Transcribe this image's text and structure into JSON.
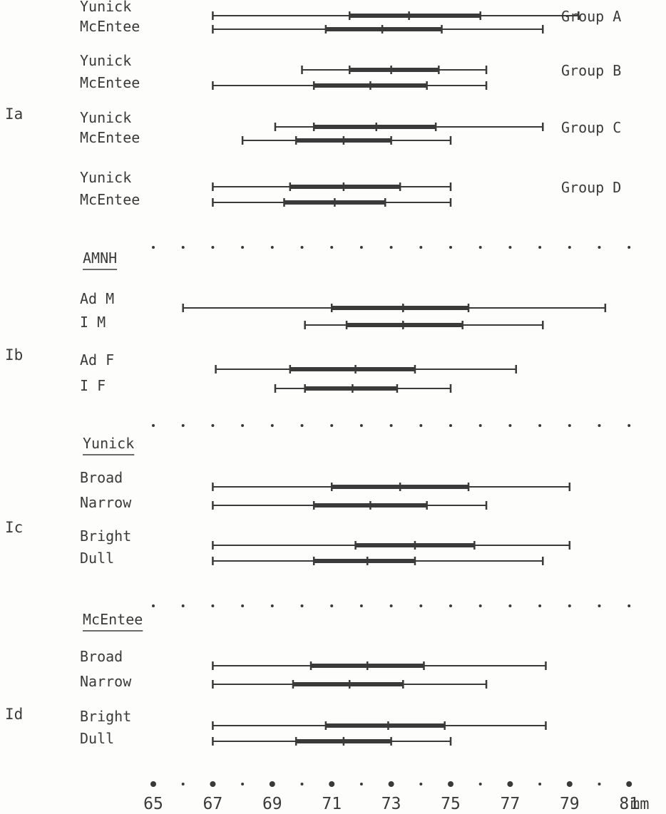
{
  "chart_data": {
    "type": "range",
    "unit_label": "mm",
    "x_ticks": [
      65,
      67,
      69,
      71,
      73,
      75,
      77,
      79,
      81
    ],
    "xlim": [
      65,
      81
    ],
    "sections": [
      {
        "id": "Ia",
        "label": "Ia",
        "groups": [
          {
            "group_label": "Group A",
            "rows": [
              {
                "label": "Yunick",
                "min": 67.0,
                "q1": 71.6,
                "mean": 73.6,
                "q3": 76.0,
                "max": 79.3
              },
              {
                "label": "McEntee",
                "min": 67.0,
                "q1": 70.8,
                "mean": 72.7,
                "q3": 74.7,
                "max": 78.1
              }
            ]
          },
          {
            "group_label": "Group B",
            "rows": [
              {
                "label": "Yunick",
                "min": 70.0,
                "q1": 71.6,
                "mean": 73.0,
                "q3": 74.6,
                "max": 76.2
              },
              {
                "label": "McEntee",
                "min": 67.0,
                "q1": 70.4,
                "mean": 72.3,
                "q3": 74.2,
                "max": 76.2
              }
            ]
          },
          {
            "group_label": "Group C",
            "rows": [
              {
                "label": "Yunick",
                "min": 69.1,
                "q1": 70.4,
                "mean": 72.5,
                "q3": 74.5,
                "max": 78.1
              },
              {
                "label": "McEntee",
                "min": 68.0,
                "q1": 69.8,
                "mean": 71.4,
                "q3": 73.0,
                "max": 75.0
              }
            ]
          },
          {
            "group_label": "Group D",
            "rows": [
              {
                "label": "Yunick",
                "min": 67.0,
                "q1": 69.6,
                "mean": 71.4,
                "q3": 73.3,
                "max": 75.0
              },
              {
                "label": "McEntee",
                "min": 67.0,
                "q1": 69.4,
                "mean": 71.1,
                "q3": 72.8,
                "max": 75.0
              }
            ]
          }
        ]
      },
      {
        "id": "Ib",
        "label": "Ib",
        "heading": "AMNH",
        "groups": [
          {
            "group_label": "",
            "rows": [
              {
                "label": "Ad M",
                "min": 66.0,
                "q1": 71.0,
                "mean": 73.4,
                "q3": 75.6,
                "max": 80.2
              },
              {
                "label": "I  M",
                "min": 70.1,
                "q1": 71.5,
                "mean": 73.4,
                "q3": 75.4,
                "max": 78.1
              }
            ]
          },
          {
            "group_label": "",
            "rows": [
              {
                "label": "Ad F",
                "min": 67.1,
                "q1": 69.6,
                "mean": 71.8,
                "q3": 73.8,
                "max": 77.2
              },
              {
                "label": "I  F",
                "min": 69.1,
                "q1": 70.1,
                "mean": 71.7,
                "q3": 73.2,
                "max": 75.0
              }
            ]
          }
        ]
      },
      {
        "id": "Ic",
        "label": "Ic",
        "heading": "Yunick",
        "groups": [
          {
            "group_label": "",
            "rows": [
              {
                "label": "Broad",
                "min": 67.0,
                "q1": 71.0,
                "mean": 73.3,
                "q3": 75.6,
                "max": 79.0
              },
              {
                "label": "Narrow",
                "min": 67.0,
                "q1": 70.4,
                "mean": 72.3,
                "q3": 74.2,
                "max": 76.2
              }
            ]
          },
          {
            "group_label": "",
            "rows": [
              {
                "label": "Bright",
                "min": 67.0,
                "q1": 71.8,
                "mean": 73.8,
                "q3": 75.8,
                "max": 79.0
              },
              {
                "label": "Dull",
                "min": 67.0,
                "q1": 70.4,
                "mean": 72.2,
                "q3": 73.8,
                "max": 78.1
              }
            ]
          }
        ]
      },
      {
        "id": "Id",
        "label": "Id",
        "heading": "McEntee",
        "groups": [
          {
            "group_label": "",
            "rows": [
              {
                "label": "Broad",
                "min": 67.0,
                "q1": 70.3,
                "mean": 72.2,
                "q3": 74.1,
                "max": 78.2
              },
              {
                "label": "Narrow",
                "min": 67.0,
                "q1": 69.7,
                "mean": 71.6,
                "q3": 73.4,
                "max": 76.2
              }
            ]
          },
          {
            "group_label": "",
            "rows": [
              {
                "label": "Bright",
                "min": 67.0,
                "q1": 70.8,
                "mean": 72.9,
                "q3": 74.8,
                "max": 78.2
              },
              {
                "label": "Dull",
                "min": 67.0,
                "q1": 69.8,
                "mean": 71.4,
                "q3": 73.0,
                "max": 75.0
              }
            ]
          }
        ]
      }
    ],
    "colors": {
      "ink": "#3a3a3a",
      "paper": "#fdfdfc"
    }
  }
}
